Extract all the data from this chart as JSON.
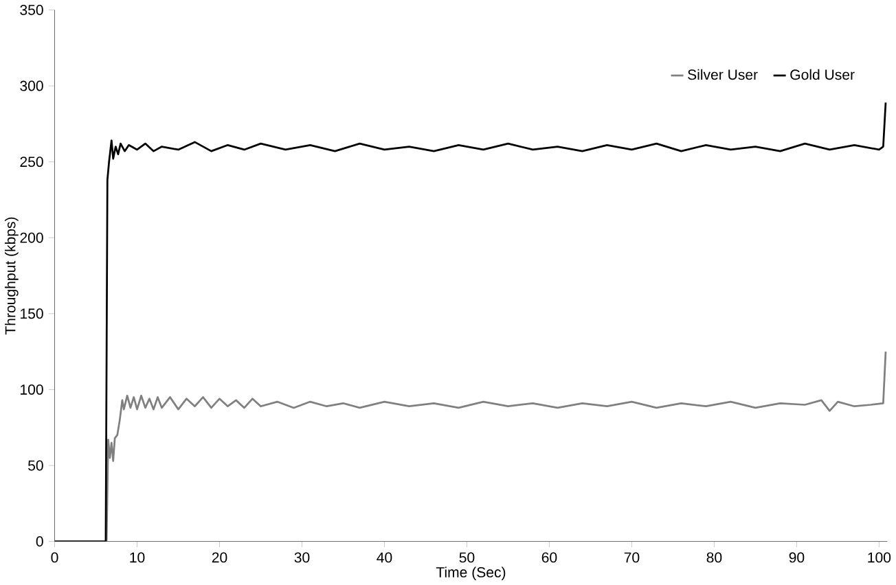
{
  "chart_data": {
    "type": "line",
    "xlabel": "Time (Sec)",
    "ylabel": "Throughput (kbps)",
    "xlim": [
      0,
      101
    ],
    "ylim": [
      0,
      350
    ],
    "xticks": [
      0,
      10,
      20,
      30,
      40,
      50,
      60,
      70,
      80,
      90,
      100
    ],
    "yticks": [
      0,
      50,
      100,
      150,
      200,
      250,
      300,
      350
    ],
    "legend": "top right",
    "grid": false,
    "marker": "none",
    "line_style": "solid",
    "series": [
      {
        "name": "Silver User",
        "color": "#808080",
        "x": [
          0,
          6.3,
          6.5,
          6.7,
          6.9,
          7.1,
          7.3,
          7.6,
          7.9,
          8.2,
          8.4,
          8.8,
          9.2,
          9.6,
          10,
          10.5,
          11,
          11.5,
          12,
          12.5,
          13,
          14,
          15,
          16,
          17,
          18,
          19,
          20,
          21,
          22,
          23,
          24,
          25,
          27,
          29,
          31,
          33,
          35,
          37,
          40,
          43,
          46,
          49,
          52,
          55,
          58,
          61,
          64,
          67,
          70,
          73,
          76,
          79,
          82,
          85,
          88,
          91,
          93,
          94,
          95,
          97,
          99,
          100.5,
          100.8
        ],
        "values": [
          0,
          0,
          67,
          55,
          65,
          53,
          68,
          70,
          80,
          93,
          87,
          96,
          88,
          95,
          87,
          96,
          88,
          94,
          87,
          95,
          88,
          95,
          87,
          94,
          89,
          95,
          88,
          94,
          89,
          93,
          88,
          94,
          89,
          92,
          88,
          92,
          89,
          91,
          88,
          92,
          89,
          91,
          88,
          92,
          89,
          91,
          88,
          91,
          89,
          92,
          88,
          91,
          89,
          92,
          88,
          91,
          90,
          93,
          86,
          92,
          89,
          90,
          91,
          125
        ]
      },
      {
        "name": "Gold User",
        "color": "#000000",
        "x": [
          0,
          6.2,
          6.4,
          6.6,
          6.9,
          7.1,
          7.4,
          7.7,
          8,
          8.5,
          9,
          10,
          11,
          12,
          13,
          15,
          17,
          19,
          21,
          23,
          25,
          28,
          31,
          34,
          37,
          40,
          43,
          46,
          49,
          52,
          55,
          58,
          61,
          64,
          67,
          70,
          73,
          76,
          79,
          82,
          85,
          88,
          91,
          94,
          97,
          100,
          100.5,
          100.8
        ],
        "values": [
          0,
          0,
          238,
          250,
          264,
          252,
          260,
          255,
          262,
          257,
          261,
          258,
          262,
          257,
          260,
          258,
          263,
          257,
          261,
          258,
          262,
          258,
          261,
          257,
          262,
          258,
          260,
          257,
          261,
          258,
          262,
          258,
          260,
          257,
          261,
          258,
          262,
          257,
          261,
          258,
          260,
          257,
          262,
          258,
          261,
          258,
          260,
          289
        ]
      }
    ]
  }
}
